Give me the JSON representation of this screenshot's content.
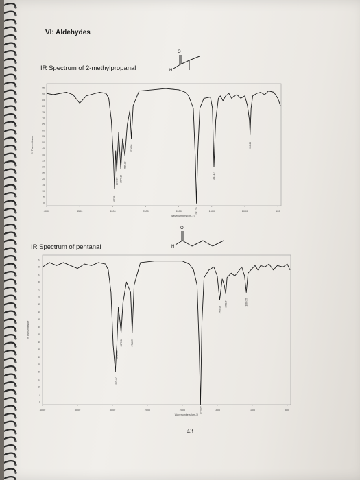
{
  "page": {
    "heading": "VI: Aldehydes",
    "page_number": "43"
  },
  "spectra": [
    {
      "title": "IR Spectrum of 2-methylpropanal",
      "ylabel": "% Transmittance",
      "xlabel": "Wavenumbers (cm-1)",
      "x_ticks": [
        "4000",
        "3500",
        "3000",
        "2500",
        "2000",
        "1500",
        "1000",
        "500"
      ],
      "y_ticks": [
        "95",
        "90",
        "85",
        "80",
        "75",
        "70",
        "65",
        "60",
        "55",
        "50",
        "45",
        "40",
        "35",
        "30",
        "25",
        "20",
        "15",
        "10",
        "5",
        "0"
      ],
      "peak_labels": [
        "2972.14",
        "2939.03",
        "2877.12",
        "2815.29",
        "2716.98",
        "1731.73",
        "1467.12",
        "919.60"
      ],
      "chart_data": {
        "type": "line",
        "xlabel": "Wavenumbers (cm-1)",
        "ylabel": "% Transmittance",
        "xlim": [
          4000,
          450
        ],
        "ylim": [
          0,
          100
        ],
        "points": [
          [
            4000,
            92
          ],
          [
            3900,
            91
          ],
          [
            3700,
            93
          ],
          [
            3600,
            91
          ],
          [
            3500,
            84
          ],
          [
            3400,
            90
          ],
          [
            3200,
            93
          ],
          [
            3100,
            92
          ],
          [
            3060,
            88
          ],
          [
            3020,
            70
          ],
          [
            2990,
            40
          ],
          [
            2972,
            14
          ],
          [
            2955,
            45
          ],
          [
            2939,
            28
          ],
          [
            2910,
            60
          ],
          [
            2877,
            30
          ],
          [
            2850,
            55
          ],
          [
            2815,
            41
          ],
          [
            2780,
            66
          ],
          [
            2740,
            78
          ],
          [
            2717,
            55
          ],
          [
            2690,
            82
          ],
          [
            2600,
            94
          ],
          [
            2400,
            95
          ],
          [
            2200,
            96
          ],
          [
            2000,
            95
          ],
          [
            1900,
            93
          ],
          [
            1850,
            90
          ],
          [
            1780,
            80
          ],
          [
            1750,
            40
          ],
          [
            1731,
            2
          ],
          [
            1710,
            45
          ],
          [
            1680,
            80
          ],
          [
            1620,
            88
          ],
          [
            1520,
            89
          ],
          [
            1490,
            80
          ],
          [
            1467,
            32
          ],
          [
            1440,
            70
          ],
          [
            1400,
            88
          ],
          [
            1370,
            90
          ],
          [
            1330,
            86
          ],
          [
            1290,
            90
          ],
          [
            1240,
            92
          ],
          [
            1200,
            88
          ],
          [
            1160,
            90
          ],
          [
            1120,
            91
          ],
          [
            1060,
            88
          ],
          [
            1000,
            90
          ],
          [
            960,
            82
          ],
          [
            930,
            70
          ],
          [
            920,
            58
          ],
          [
            905,
            80
          ],
          [
            880,
            90
          ],
          [
            820,
            92
          ],
          [
            760,
            93
          ],
          [
            700,
            91
          ],
          [
            640,
            94
          ],
          [
            560,
            93
          ],
          [
            500,
            88
          ],
          [
            460,
            82
          ]
        ]
      }
    },
    {
      "title": "IR Spectrum of pentanal",
      "ylabel": "% Transmittance",
      "xlabel": "Wavenumbers (cm-1)",
      "x_ticks": [
        "4000",
        "3500",
        "3000",
        "2500",
        "2000",
        "1500",
        "1000",
        "500"
      ],
      "y_ticks": [
        "95",
        "90",
        "85",
        "80",
        "75",
        "70",
        "65",
        "60",
        "55",
        "50",
        "45",
        "40",
        "35",
        "30",
        "25",
        "20",
        "15",
        "10",
        "5",
        "0"
      ],
      "peak_labels": [
        "2958.55",
        "2937.19",
        "2875.98",
        "2716.79",
        "1740.95",
        "1466.68",
        "1380.34",
        "1085.55"
      ],
      "chart_data": {
        "type": "line",
        "xlabel": "Wavenumbers (cm-1)",
        "ylabel": "% Transmittance",
        "xlim": [
          4000,
          450
        ],
        "ylim": [
          0,
          100
        ],
        "points": [
          [
            4000,
            92
          ],
          [
            3900,
            95
          ],
          [
            3800,
            93
          ],
          [
            3700,
            95
          ],
          [
            3600,
            93
          ],
          [
            3500,
            91
          ],
          [
            3400,
            94
          ],
          [
            3300,
            93
          ],
          [
            3200,
            95
          ],
          [
            3100,
            94
          ],
          [
            3060,
            90
          ],
          [
            3020,
            75
          ],
          [
            2990,
            40
          ],
          [
            2958,
            22
          ],
          [
            2945,
            35
          ],
          [
            2937,
            40
          ],
          [
            2915,
            65
          ],
          [
            2890,
            55
          ],
          [
            2876,
            48
          ],
          [
            2850,
            68
          ],
          [
            2800,
            82
          ],
          [
            2740,
            75
          ],
          [
            2717,
            48
          ],
          [
            2690,
            80
          ],
          [
            2600,
            95
          ],
          [
            2400,
            96
          ],
          [
            2200,
            96
          ],
          [
            2000,
            96
          ],
          [
            1900,
            94
          ],
          [
            1840,
            90
          ],
          [
            1790,
            80
          ],
          [
            1760,
            40
          ],
          [
            1741,
            0
          ],
          [
            1720,
            55
          ],
          [
            1690,
            85
          ],
          [
            1620,
            90
          ],
          [
            1550,
            92
          ],
          [
            1500,
            86
          ],
          [
            1466,
            70
          ],
          [
            1430,
            84
          ],
          [
            1400,
            80
          ],
          [
            1380,
            74
          ],
          [
            1360,
            85
          ],
          [
            1300,
            88
          ],
          [
            1250,
            86
          ],
          [
            1200,
            89
          ],
          [
            1150,
            92
          ],
          [
            1110,
            86
          ],
          [
            1085,
            75
          ],
          [
            1060,
            88
          ],
          [
            1000,
            91
          ],
          [
            960,
            93
          ],
          [
            920,
            90
          ],
          [
            880,
            93
          ],
          [
            820,
            92
          ],
          [
            760,
            94
          ],
          [
            700,
            90
          ],
          [
            640,
            93
          ],
          [
            560,
            92
          ],
          [
            500,
            94
          ],
          [
            460,
            90
          ]
        ]
      }
    }
  ],
  "molecules": [
    {
      "name": "2-methylpropanal skeletal structure",
      "atom_labels": [
        "O",
        "H"
      ]
    },
    {
      "name": "pentanal skeletal structure",
      "atom_labels": [
        "O",
        "H"
      ]
    }
  ]
}
